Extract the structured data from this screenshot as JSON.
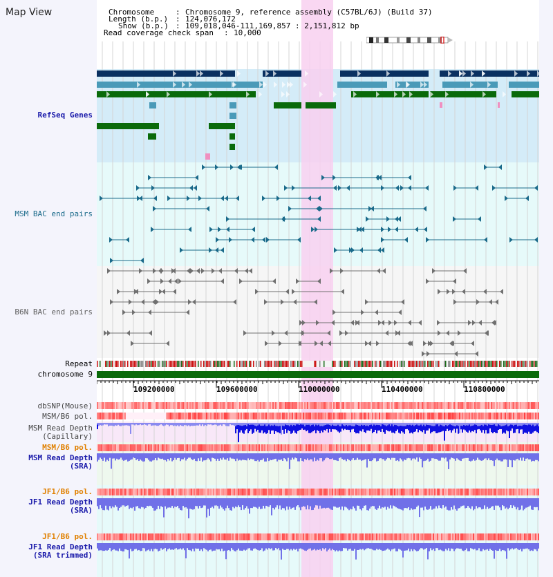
{
  "header": {
    "title": "Map View",
    "chromosome_key": "Chromosome",
    "chromosome_value": "Chromosome 9, reference assembly (C57BL/6J) (Build 37)",
    "length_key": "Length (b.p.)",
    "length_value": "124,076,172",
    "show_key": "Show (b.p.)",
    "show_value": "109,018,046-111,169,857 : 2,151,812 bp",
    "coverage_key": "Read coverage check span",
    "coverage_value": "10,000"
  },
  "tracks": {
    "refseq": "RefSeq Genes",
    "msm_bac": "MSM BAC end pairs",
    "b6n_bac": "B6N BAC end pairs",
    "repeat": "Repeat",
    "chromosome": "chromosome 9",
    "dbsnp": "dbSNP(Mouse)",
    "msm_b6_pol": "MSM/B6 pol.",
    "msm_read_depth_cap_1": "MSM Read Depth",
    "msm_read_depth_cap_2": "(Capillary)",
    "msm_b6_pol_2": "MSM/B6 pol.",
    "msm_read_depth_sra_1": "MSM Read Depth",
    "msm_read_depth_sra_2": "(SRA)",
    "jf1_b6_pol": "JF1/B6 pol.",
    "jf1_read_depth_sra_1": "JF1 Read Depth",
    "jf1_read_depth_sra_2": "(SRA)",
    "jf1_b6_pol_2": "JF1/B6 pol.",
    "jf1_read_depth_trim_1": "JF1 Read Depth",
    "jf1_read_depth_trim_2": "(SRA trimmed)"
  },
  "axis": {
    "ticks": [
      "109200000",
      "109600000",
      "110000000",
      "110400000",
      "110800000"
    ]
  },
  "colors": {
    "highlight": "#f8d0f0",
    "refseq_dark": "#0a3060",
    "refseq_light": "#4a9ab8",
    "refseq_green": "#0a6a0a",
    "bac_msm": "#1a6a8a",
    "bac_b6n": "#707070",
    "depth_capillary": "#1010e0",
    "depth_sra": "#7070e8",
    "label_navy": "#1a1aaa",
    "label_orange": "#e08000"
  }
}
